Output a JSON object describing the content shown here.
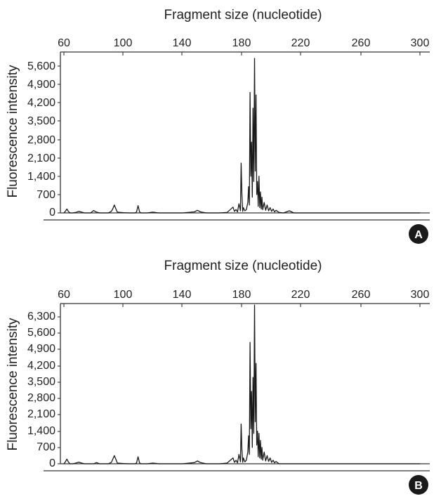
{
  "colors": {
    "trace": "#1a1a1a",
    "axis": "#333333",
    "badge": "#1a1a1a",
    "badge_text": "#ffffff"
  },
  "chart_data": [
    {
      "type": "line",
      "panel_label": "A",
      "title": "Fragment size (nucleotide)",
      "xlabel": "Fragment size (nucleotide)",
      "ylabel": "Fluorescence intensity",
      "x_ticks": [
        "60",
        "100",
        "140",
        "180",
        "220",
        "260",
        "300"
      ],
      "y_ticks": [
        "0",
        "700",
        "1,400",
        "2,100",
        "2,800",
        "3,500",
        "4,200",
        "4,900",
        "5,600"
      ],
      "xlim": [
        60,
        300
      ],
      "ylim": [
        0,
        5950
      ],
      "series": [
        {
          "x": [
            60,
            61,
            62,
            63,
            64,
            66,
            68,
            70,
            72,
            74,
            78,
            80,
            82,
            84,
            90,
            92,
            93,
            94,
            95,
            96,
            100,
            104,
            108,
            109,
            110,
            111,
            112,
            116,
            120,
            124,
            130,
            140,
            148,
            150,
            152,
            156,
            165,
            170,
            174,
            175,
            176,
            177,
            178,
            179,
            179.5,
            180,
            180.5,
            181,
            182,
            183,
            184,
            184.5,
            185,
            185.5,
            186,
            186.5,
            187,
            187.5,
            188,
            188.5,
            189,
            189.5,
            190,
            190.5,
            191,
            191.5,
            192,
            192.5,
            193,
            193.5,
            194,
            195,
            196,
            197,
            198,
            199,
            200,
            201,
            202,
            203,
            205,
            208,
            212,
            215,
            220,
            260,
            300
          ],
          "y": [
            0,
            60,
            150,
            60,
            0,
            0,
            20,
            60,
            30,
            0,
            0,
            90,
            30,
            0,
            0,
            60,
            160,
            300,
            160,
            30,
            10,
            0,
            0,
            40,
            280,
            40,
            0,
            0,
            30,
            0,
            0,
            0,
            40,
            100,
            40,
            0,
            0,
            20,
            220,
            60,
            130,
            40,
            350,
            80,
            1900,
            700,
            60,
            200,
            80,
            120,
            400,
            1000,
            300,
            4600,
            1400,
            2700,
            600,
            4000,
            1200,
            5900,
            1600,
            4500,
            700,
            1200,
            250,
            1400,
            200,
            800,
            150,
            600,
            120,
            400,
            100,
            300,
            80,
            200,
            60,
            150,
            40,
            100,
            20,
            0,
            80,
            0,
            0,
            0,
            0
          ]
        }
      ]
    },
    {
      "type": "line",
      "panel_label": "B",
      "title": "Fragment size (nucleotide)",
      "xlabel": "Fragment size (nucleotide)",
      "ylabel": "Fluorescence intensity",
      "x_ticks": [
        "60",
        "100",
        "140",
        "180",
        "220",
        "260",
        "300"
      ],
      "y_ticks": [
        "0",
        "700",
        "1,400",
        "2,100",
        "2,800",
        "3,500",
        "4,200",
        "4,900",
        "5,600",
        "6,300"
      ],
      "xlim": [
        60,
        300
      ],
      "ylim": [
        0,
        6800
      ],
      "series": [
        {
          "x": [
            60,
            61,
            62,
            63,
            64,
            66,
            68,
            70,
            72,
            74,
            80,
            82,
            84,
            90,
            92,
            93,
            94,
            95,
            96,
            100,
            104,
            108,
            109,
            110,
            111,
            112,
            116,
            120,
            124,
            130,
            140,
            148,
            150,
            152,
            156,
            165,
            170,
            174,
            175,
            176,
            177,
            178,
            179,
            179.5,
            180,
            180.5,
            181,
            182,
            183,
            184,
            184.5,
            185,
            185.5,
            186,
            186.5,
            187,
            187.5,
            188,
            188.5,
            189,
            189.5,
            190,
            190.5,
            191,
            191.5,
            192,
            192.5,
            193,
            193.5,
            194,
            195,
            196,
            197,
            198,
            199,
            200,
            201,
            202,
            203,
            205,
            220,
            260,
            300
          ],
          "y": [
            0,
            80,
            200,
            80,
            0,
            0,
            30,
            70,
            30,
            0,
            0,
            50,
            0,
            0,
            60,
            200,
            350,
            200,
            30,
            10,
            0,
            0,
            40,
            300,
            40,
            0,
            0,
            30,
            0,
            0,
            0,
            50,
            120,
            50,
            0,
            0,
            30,
            250,
            60,
            150,
            40,
            400,
            80,
            1700,
            600,
            60,
            250,
            80,
            150,
            500,
            1200,
            400,
            5200,
            1500,
            3100,
            700,
            3700,
            1300,
            6800,
            1800,
            4300,
            800,
            1400,
            300,
            1300,
            250,
            1000,
            200,
            700,
            150,
            500,
            120,
            350,
            100,
            250,
            60,
            150,
            40,
            100,
            0,
            0,
            0,
            0
          ]
        }
      ]
    }
  ]
}
